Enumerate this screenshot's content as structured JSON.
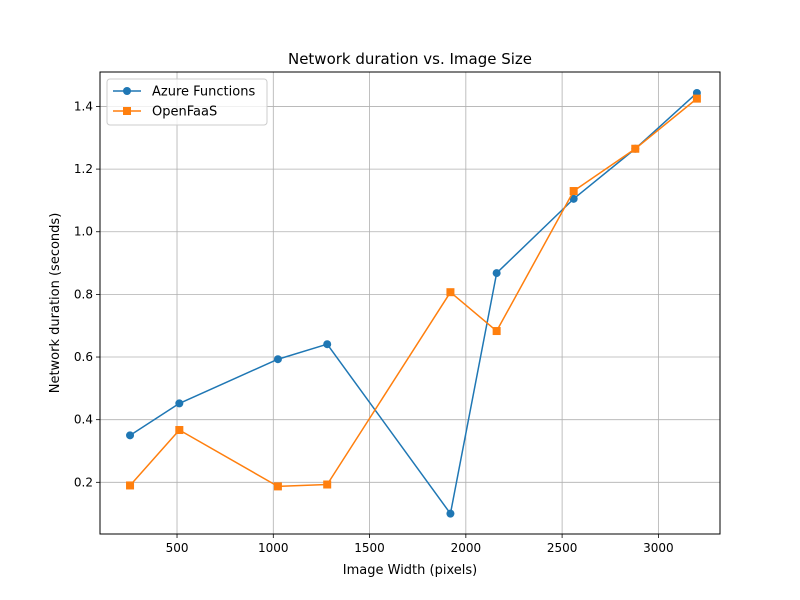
{
  "chart_data": {
    "type": "line",
    "title": "Network duration vs. Image Size",
    "xlabel": "Image Width (pixels)",
    "ylabel": "Network duration (seconds)",
    "xlim": [
      100,
      3320
    ],
    "ylim": [
      0.035,
      1.51
    ],
    "xticks": [
      500,
      1000,
      1500,
      2000,
      2500,
      3000
    ],
    "yticks": [
      0.2,
      0.4,
      0.6,
      0.8,
      1.0,
      1.2,
      1.4
    ],
    "xtick_labels": [
      "500",
      "1000",
      "1500",
      "2000",
      "2500",
      "3000"
    ],
    "ytick_labels": [
      "0.2",
      "0.4",
      "0.6",
      "0.8",
      "1.0",
      "1.2",
      "1.4"
    ],
    "grid": true,
    "legend_position": "top-left",
    "series": [
      {
        "name": "Azure Functions",
        "color": "#1f77b4",
        "marker": "circle",
        "x": [
          256,
          512,
          1024,
          1280,
          1920,
          2160,
          2560,
          2880,
          3200
        ],
        "y": [
          0.35,
          0.452,
          0.593,
          0.641,
          0.1,
          0.868,
          1.105,
          1.265,
          1.443
        ]
      },
      {
        "name": "OpenFaaS",
        "color": "#ff7f0e",
        "marker": "square",
        "x": [
          256,
          512,
          1024,
          1280,
          1920,
          2160,
          2560,
          2880,
          3200
        ],
        "y": [
          0.19,
          0.367,
          0.187,
          0.193,
          0.807,
          0.683,
          1.13,
          1.265,
          1.425
        ]
      }
    ]
  }
}
